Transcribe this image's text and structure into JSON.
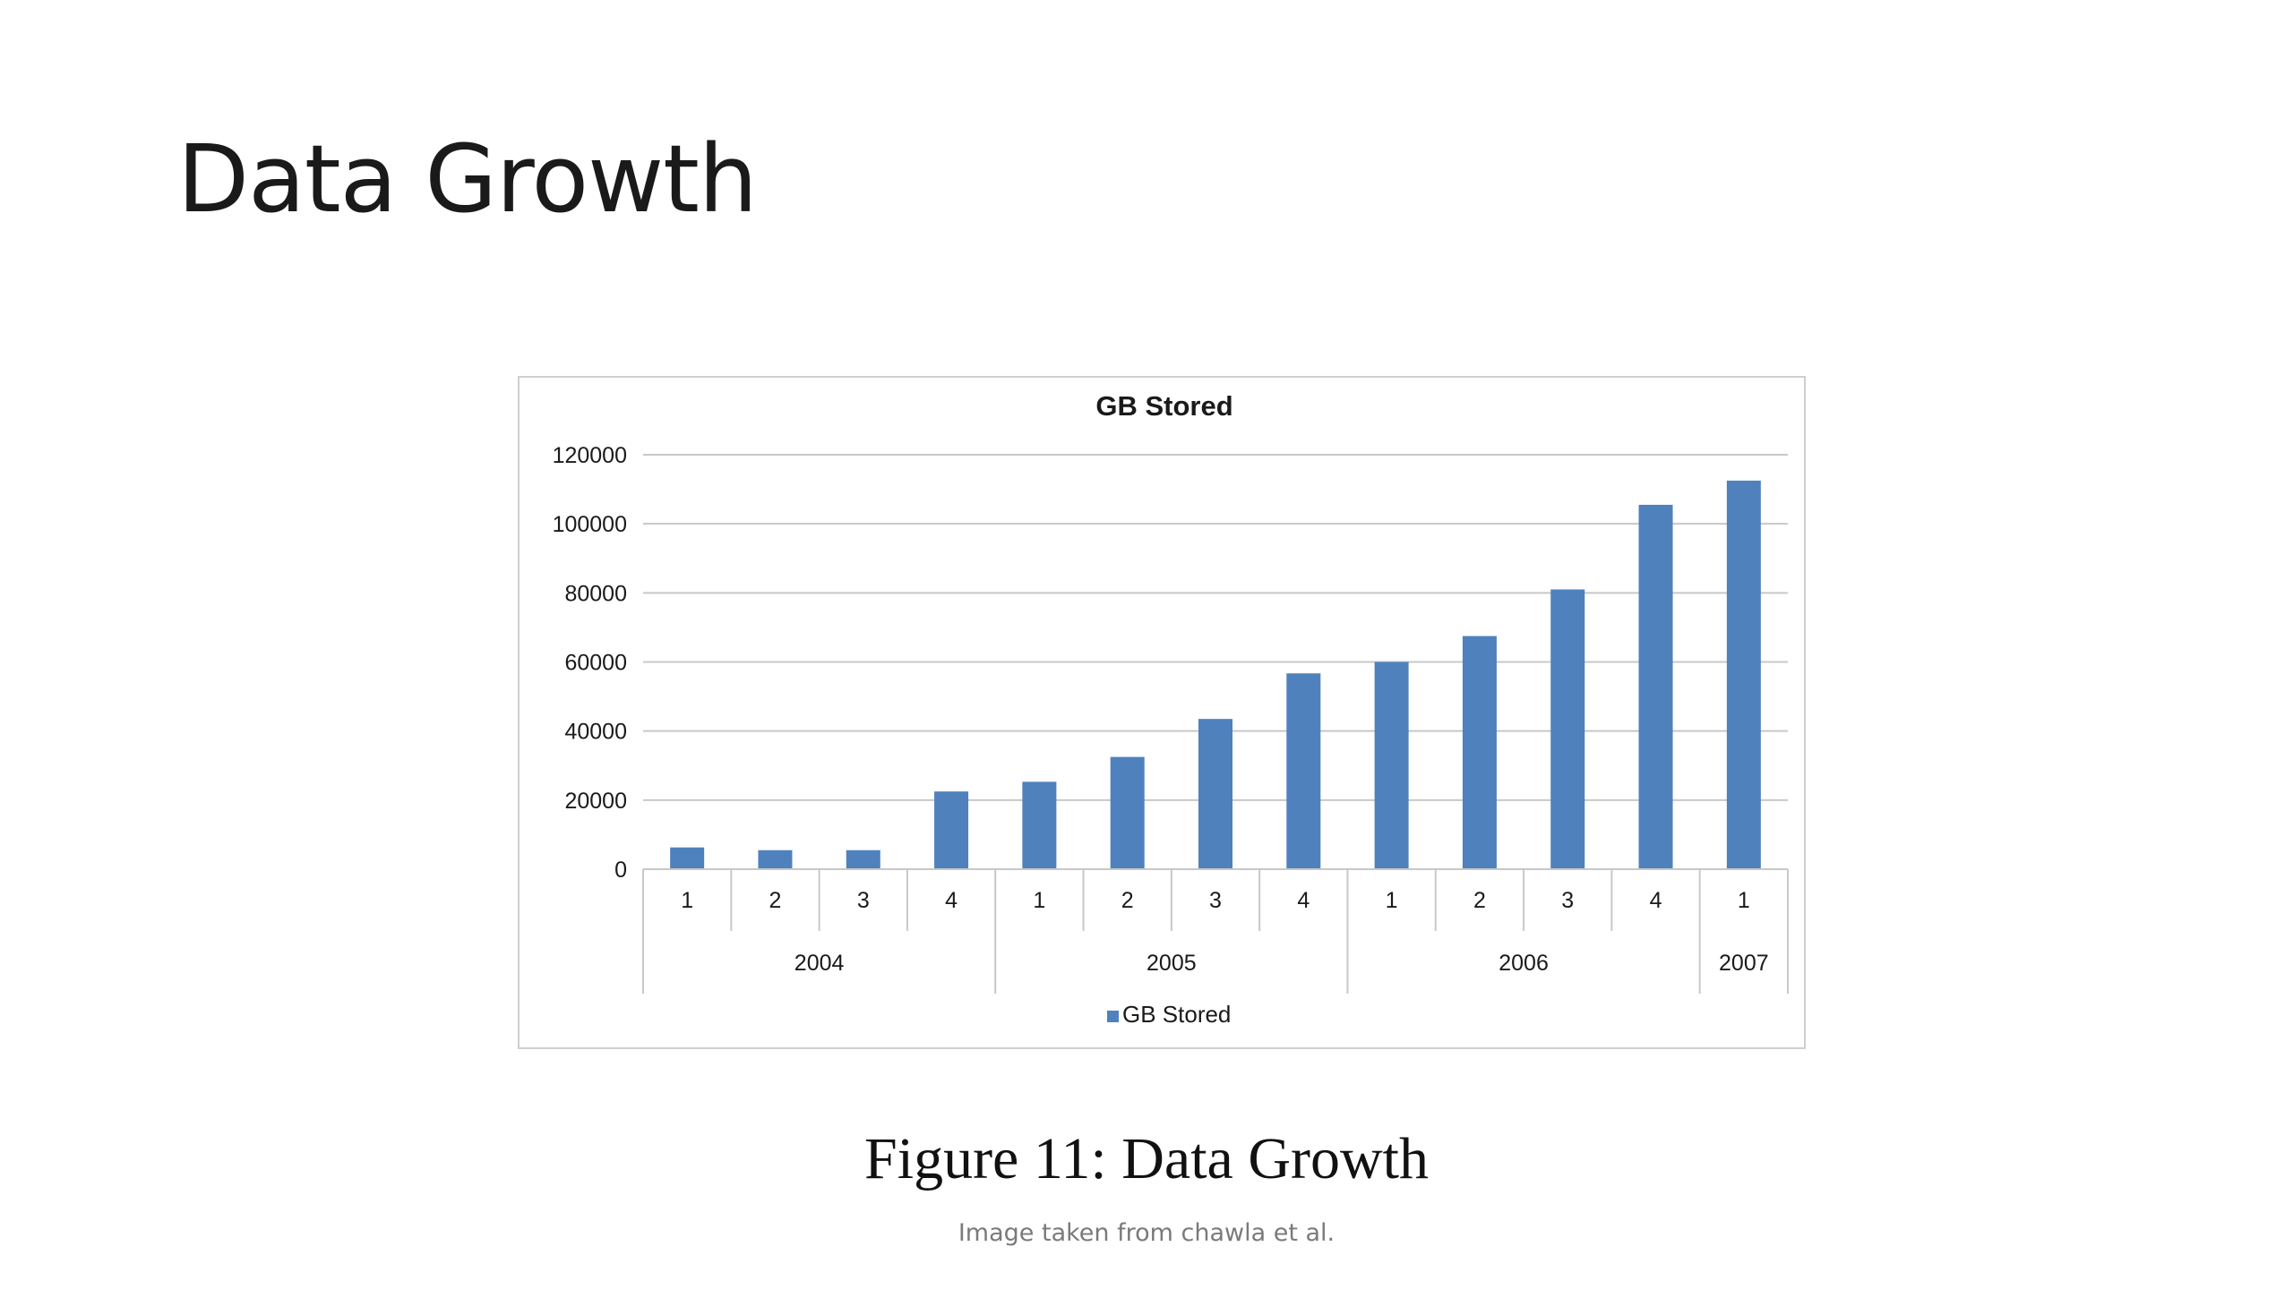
{
  "slide": {
    "title": "Data Growth",
    "caption": "Figure 11: Data Growth",
    "credit": "Image taken from  chawla et al."
  },
  "chart_data": {
    "type": "bar",
    "title": "GB Stored",
    "categories": [
      "1",
      "2",
      "3",
      "4",
      "1",
      "2",
      "3",
      "4",
      "1",
      "2",
      "3",
      "4",
      "1"
    ],
    "groups": [
      {
        "label": "2004",
        "count": 4
      },
      {
        "label": "2005",
        "count": 4
      },
      {
        "label": "2006",
        "count": 4
      },
      {
        "label": "2007",
        "count": 1
      }
    ],
    "series": [
      {
        "name": "GB Stored",
        "values": [
          6300,
          5500,
          5500,
          22500,
          25300,
          32500,
          43500,
          56700,
          60000,
          67500,
          81000,
          105500,
          112500
        ]
      }
    ],
    "ylim": [
      0,
      120000
    ],
    "yticks": [
      0,
      20000,
      40000,
      60000,
      80000,
      100000,
      120000
    ],
    "grid": true,
    "legend": "bottom",
    "bar_color": "#4f81bd",
    "grid_color": "#c8c8c8"
  }
}
